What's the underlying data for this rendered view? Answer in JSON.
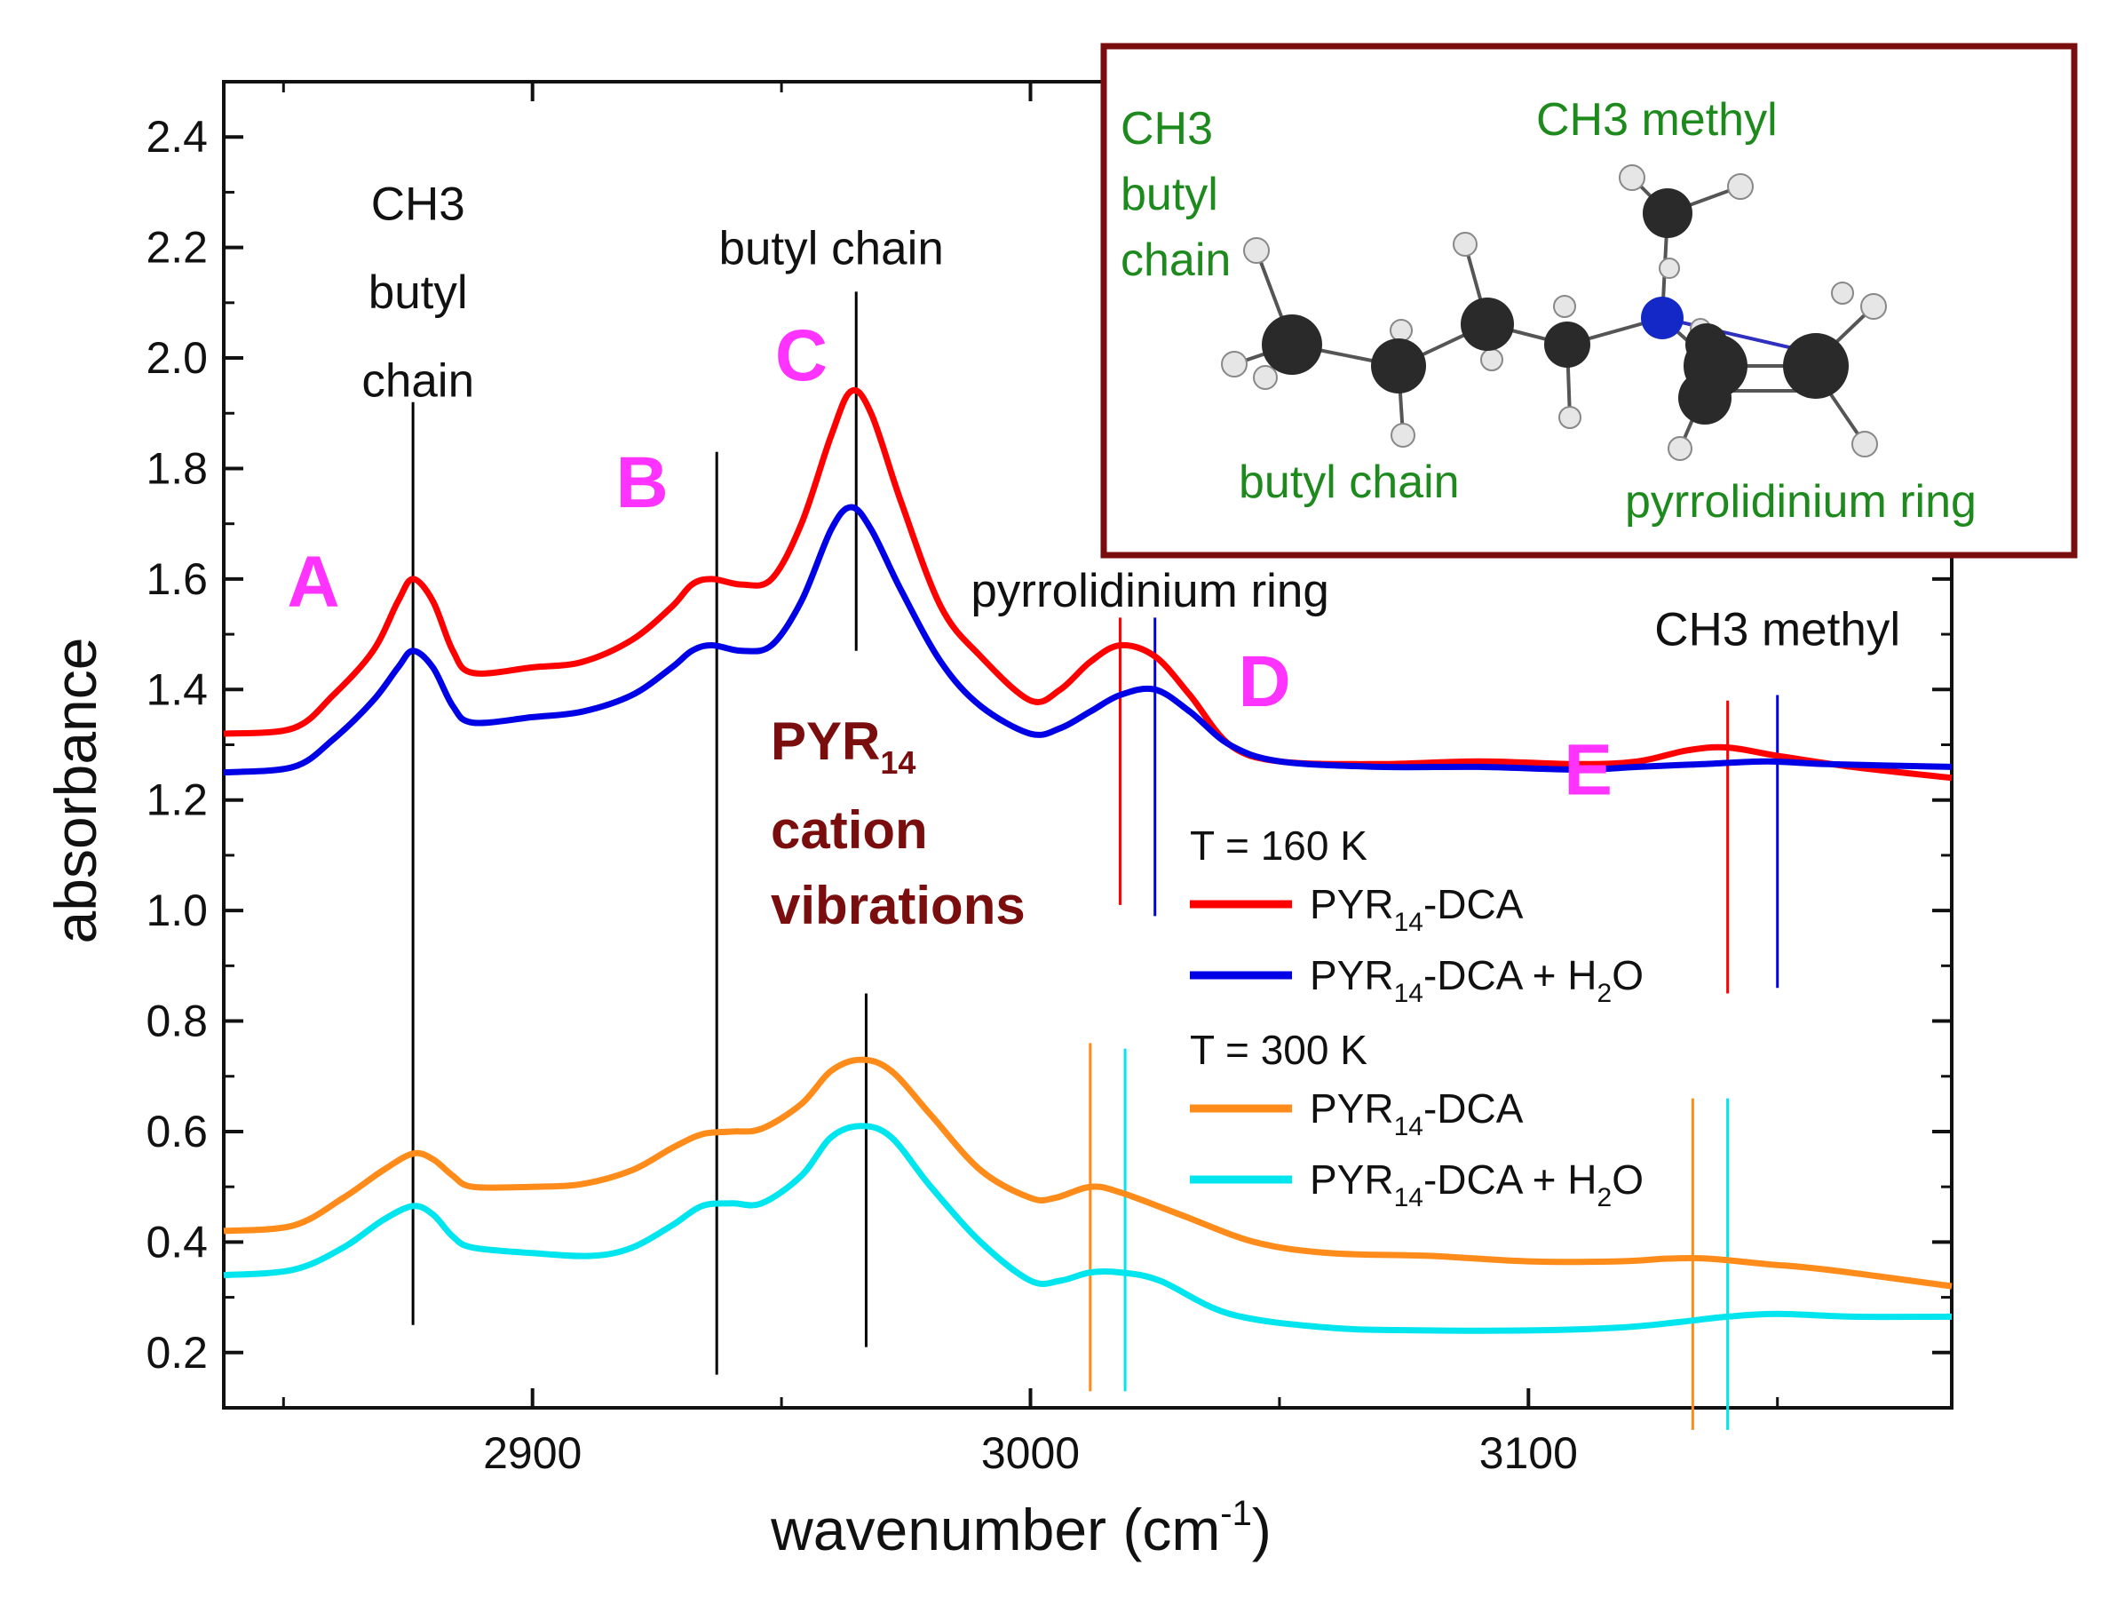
{
  "chart_data": {
    "type": "line",
    "xlabel": "wavenumber (cm",
    "xlabel_sup": "-1",
    "xlabel_close": ")",
    "ylabel": "absorbance",
    "xlim": [
      2838,
      3185
    ],
    "ylim": [
      0.1,
      2.5
    ],
    "xticks": [
      2900,
      3000,
      3100
    ],
    "yticks": [
      0.2,
      0.4,
      0.6,
      0.8,
      1.0,
      1.2,
      1.4,
      1.6,
      1.8,
      2.0,
      2.2,
      2.4
    ],
    "series": [
      {
        "name": "PYR14-DCA (160 K)",
        "color": "#ff0000",
        "points": [
          [
            2838,
            1.32
          ],
          [
            2852,
            1.33
          ],
          [
            2860,
            1.39
          ],
          [
            2868,
            1.47
          ],
          [
            2873,
            1.56
          ],
          [
            2876,
            1.6
          ],
          [
            2880,
            1.56
          ],
          [
            2884,
            1.47
          ],
          [
            2888,
            1.43
          ],
          [
            2900,
            1.44
          ],
          [
            2910,
            1.45
          ],
          [
            2920,
            1.49
          ],
          [
            2928,
            1.55
          ],
          [
            2932,
            1.59
          ],
          [
            2936,
            1.6
          ],
          [
            2942,
            1.59
          ],
          [
            2948,
            1.6
          ],
          [
            2954,
            1.7
          ],
          [
            2960,
            1.86
          ],
          [
            2964,
            1.94
          ],
          [
            2968,
            1.9
          ],
          [
            2974,
            1.74
          ],
          [
            2982,
            1.55
          ],
          [
            2990,
            1.46
          ],
          [
            3000,
            1.38
          ],
          [
            3006,
            1.4
          ],
          [
            3012,
            1.45
          ],
          [
            3018,
            1.48
          ],
          [
            3025,
            1.46
          ],
          [
            3032,
            1.39
          ],
          [
            3040,
            1.3
          ],
          [
            3050,
            1.27
          ],
          [
            3070,
            1.265
          ],
          [
            3090,
            1.27
          ],
          [
            3110,
            1.265
          ],
          [
            3122,
            1.27
          ],
          [
            3132,
            1.29
          ],
          [
            3140,
            1.295
          ],
          [
            3150,
            1.28
          ],
          [
            3165,
            1.26
          ],
          [
            3185,
            1.24
          ]
        ]
      },
      {
        "name": "PYR14-DCA + H2O (160 K)",
        "color": "#0000e6",
        "points": [
          [
            2838,
            1.25
          ],
          [
            2852,
            1.26
          ],
          [
            2860,
            1.31
          ],
          [
            2868,
            1.38
          ],
          [
            2873,
            1.44
          ],
          [
            2876,
            1.47
          ],
          [
            2880,
            1.44
          ],
          [
            2884,
            1.37
          ],
          [
            2888,
            1.34
          ],
          [
            2900,
            1.35
          ],
          [
            2910,
            1.36
          ],
          [
            2920,
            1.39
          ],
          [
            2928,
            1.44
          ],
          [
            2932,
            1.47
          ],
          [
            2936,
            1.48
          ],
          [
            2942,
            1.47
          ],
          [
            2948,
            1.48
          ],
          [
            2954,
            1.56
          ],
          [
            2960,
            1.69
          ],
          [
            2964,
            1.73
          ],
          [
            2968,
            1.69
          ],
          [
            2974,
            1.58
          ],
          [
            2982,
            1.45
          ],
          [
            2990,
            1.37
          ],
          [
            3000,
            1.32
          ],
          [
            3006,
            1.33
          ],
          [
            3012,
            1.36
          ],
          [
            3018,
            1.39
          ],
          [
            3025,
            1.4
          ],
          [
            3032,
            1.36
          ],
          [
            3040,
            1.3
          ],
          [
            3050,
            1.27
          ],
          [
            3070,
            1.26
          ],
          [
            3090,
            1.26
          ],
          [
            3110,
            1.255
          ],
          [
            3122,
            1.26
          ],
          [
            3135,
            1.265
          ],
          [
            3148,
            1.27
          ],
          [
            3160,
            1.265
          ],
          [
            3185,
            1.26
          ]
        ]
      },
      {
        "name": "PYR14-DCA (300 K)",
        "color": "#ff8c1a",
        "points": [
          [
            2838,
            0.42
          ],
          [
            2852,
            0.43
          ],
          [
            2862,
            0.48
          ],
          [
            2870,
            0.53
          ],
          [
            2876,
            0.56
          ],
          [
            2880,
            0.55
          ],
          [
            2884,
            0.52
          ],
          [
            2888,
            0.5
          ],
          [
            2900,
            0.5
          ],
          [
            2910,
            0.505
          ],
          [
            2920,
            0.53
          ],
          [
            2928,
            0.57
          ],
          [
            2934,
            0.595
          ],
          [
            2940,
            0.6
          ],
          [
            2946,
            0.605
          ],
          [
            2954,
            0.65
          ],
          [
            2960,
            0.71
          ],
          [
            2966,
            0.73
          ],
          [
            2972,
            0.71
          ],
          [
            2980,
            0.63
          ],
          [
            2990,
            0.53
          ],
          [
            3000,
            0.48
          ],
          [
            3005,
            0.48
          ],
          [
            3012,
            0.5
          ],
          [
            3018,
            0.49
          ],
          [
            3030,
            0.45
          ],
          [
            3045,
            0.4
          ],
          [
            3060,
            0.38
          ],
          [
            3080,
            0.375
          ],
          [
            3100,
            0.365
          ],
          [
            3118,
            0.365
          ],
          [
            3128,
            0.37
          ],
          [
            3136,
            0.37
          ],
          [
            3148,
            0.36
          ],
          [
            3160,
            0.35
          ],
          [
            3185,
            0.32
          ]
        ]
      },
      {
        "name": "PYR14-DCA + H2O (300 K)",
        "color": "#00e5ee",
        "points": [
          [
            2838,
            0.34
          ],
          [
            2852,
            0.35
          ],
          [
            2862,
            0.39
          ],
          [
            2870,
            0.44
          ],
          [
            2876,
            0.465
          ],
          [
            2880,
            0.45
          ],
          [
            2884,
            0.41
          ],
          [
            2888,
            0.39
          ],
          [
            2900,
            0.38
          ],
          [
            2912,
            0.375
          ],
          [
            2920,
            0.39
          ],
          [
            2928,
            0.43
          ],
          [
            2934,
            0.465
          ],
          [
            2940,
            0.47
          ],
          [
            2946,
            0.47
          ],
          [
            2954,
            0.52
          ],
          [
            2960,
            0.59
          ],
          [
            2966,
            0.61
          ],
          [
            2972,
            0.59
          ],
          [
            2980,
            0.5
          ],
          [
            2990,
            0.4
          ],
          [
            3000,
            0.33
          ],
          [
            3006,
            0.33
          ],
          [
            3012,
            0.345
          ],
          [
            3018,
            0.345
          ],
          [
            3026,
            0.33
          ],
          [
            3040,
            0.27
          ],
          [
            3060,
            0.245
          ],
          [
            3080,
            0.24
          ],
          [
            3100,
            0.24
          ],
          [
            3118,
            0.245
          ],
          [
            3130,
            0.255
          ],
          [
            3140,
            0.265
          ],
          [
            3150,
            0.27
          ],
          [
            3165,
            0.265
          ],
          [
            3185,
            0.265
          ]
        ]
      }
    ],
    "marker_lines": [
      {
        "x": 2876,
        "y0": 0.25,
        "y1": 1.92,
        "color": "#000000"
      },
      {
        "x": 2937,
        "y0": 0.16,
        "y1": 1.83,
        "color": "#000000"
      },
      {
        "x": 2965,
        "y0": 1.47,
        "y1": 2.12,
        "color": "#000000"
      },
      {
        "x": 2967,
        "y0": 0.21,
        "y1": 0.85,
        "color": "#000000"
      },
      {
        "x": 3018,
        "y0": 1.01,
        "y1": 1.53,
        "color": "#ff0000"
      },
      {
        "x": 3025,
        "y0": 0.99,
        "y1": 1.53,
        "color": "#0000e6"
      },
      {
        "x": 3012,
        "y0": 0.13,
        "y1": 0.76,
        "color": "#ff8c1a"
      },
      {
        "x": 3019,
        "y0": 0.13,
        "y1": 0.75,
        "color": "#00e5ee"
      },
      {
        "x": 3140,
        "y0": 0.85,
        "y1": 1.38,
        "color": "#ff0000"
      },
      {
        "x": 3150,
        "y0": 0.86,
        "y1": 1.39,
        "color": "#0000e6"
      },
      {
        "x": 3133,
        "y0": 0.06,
        "y1": 0.66,
        "color": "#ff8c1a"
      },
      {
        "x": 3140,
        "y0": 0.06,
        "y1": 0.66,
        "color": "#00e5ee"
      }
    ],
    "peak_labels": [
      {
        "letter": "A",
        "x": 2856,
        "y": 1.55
      },
      {
        "letter": "B",
        "x": 2922,
        "y": 1.73
      },
      {
        "letter": "C",
        "x": 2954,
        "y": 1.96
      },
      {
        "letter": "D",
        "x": 3047,
        "y": 1.37
      },
      {
        "letter": "E",
        "x": 3112,
        "y": 1.21
      }
    ],
    "annotations": [
      {
        "text": "CH3",
        "x": 2877,
        "y": 2.25
      },
      {
        "text": "butyl",
        "x": 2877,
        "y": 2.09
      },
      {
        "text": "chain",
        "x": 2877,
        "y": 1.93
      },
      {
        "text": "butyl chain",
        "x": 2960,
        "y": 2.17
      },
      {
        "text": "pyrrolidinium ring",
        "x": 3024,
        "y": 1.55
      },
      {
        "text": "CH3 methyl",
        "x": 3150,
        "y": 1.48
      }
    ],
    "category_note": {
      "line1": "PYR",
      "line1_sub": "14",
      "line2": "cation",
      "line3": "vibrations"
    },
    "legend": {
      "position": "right-center",
      "groups": [
        {
          "title": "T = 160 K",
          "entries": [
            {
              "label": "PYR",
              "sub": "14",
              "rest": "-DCA",
              "color": "#ff0000"
            },
            {
              "label": "PYR",
              "sub": "14",
              "rest": "-DCA + H",
              "sub2": "2",
              "rest2": "O",
              "color": "#0000e6"
            }
          ]
        },
        {
          "title": "T = 300 K",
          "entries": [
            {
              "label": "PYR",
              "sub": "14",
              "rest": "-DCA",
              "color": "#ff8c1a"
            },
            {
              "label": "PYR",
              "sub": "14",
              "rest": "-DCA + H",
              "sub2": "2",
              "rest2": "O",
              "color": "#00e5ee"
            }
          ]
        }
      ]
    },
    "inset": {
      "labels": {
        "ch3_butyl_1": "CH3",
        "ch3_butyl_2": "butyl",
        "ch3_butyl_3": "chain",
        "ch3_methyl": "CH3 methyl",
        "butyl_chain": "butyl chain",
        "pyrrolidinium_ring": "pyrrolidinium ring"
      },
      "border_color": "#7a0e0e",
      "label_color": "#1e8a1e"
    }
  }
}
